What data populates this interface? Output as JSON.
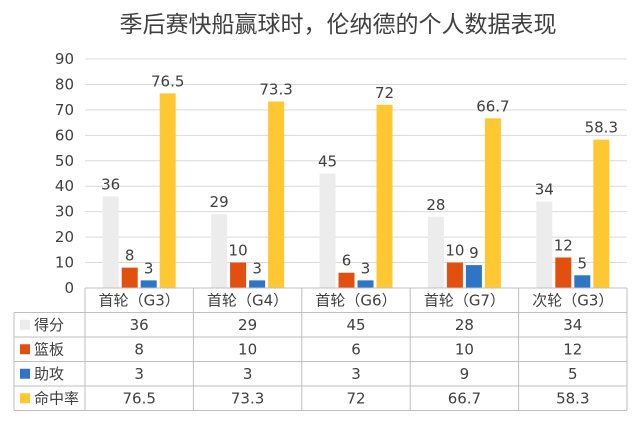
{
  "chart_data": {
    "type": "bar",
    "title": "季后赛快船赢球时，伦纳德的个人数据表现",
    "categories": [
      "首轮（G3）",
      "首轮（G4）",
      "首轮（G6）",
      "首轮（G7）",
      "次轮（G3）"
    ],
    "series": [
      {
        "name": "得分",
        "color": "#ececec",
        "values": [
          36,
          29,
          45,
          28,
          34
        ]
      },
      {
        "name": "篮板",
        "color": "#e2500f",
        "values": [
          8,
          10,
          6,
          10,
          12
        ]
      },
      {
        "name": "助攻",
        "color": "#2e75c5",
        "values": [
          3,
          3,
          3,
          9,
          5
        ]
      },
      {
        "name": "命中率",
        "color": "#ffc832",
        "values": [
          76.5,
          73.3,
          72,
          66.7,
          58.3
        ]
      }
    ],
    "ylim": [
      0,
      90
    ],
    "yticks": [
      "0",
      "10",
      "20",
      "30",
      "40",
      "50",
      "60",
      "70",
      "80",
      "90"
    ],
    "grid": true,
    "legend": "data-table-below"
  }
}
